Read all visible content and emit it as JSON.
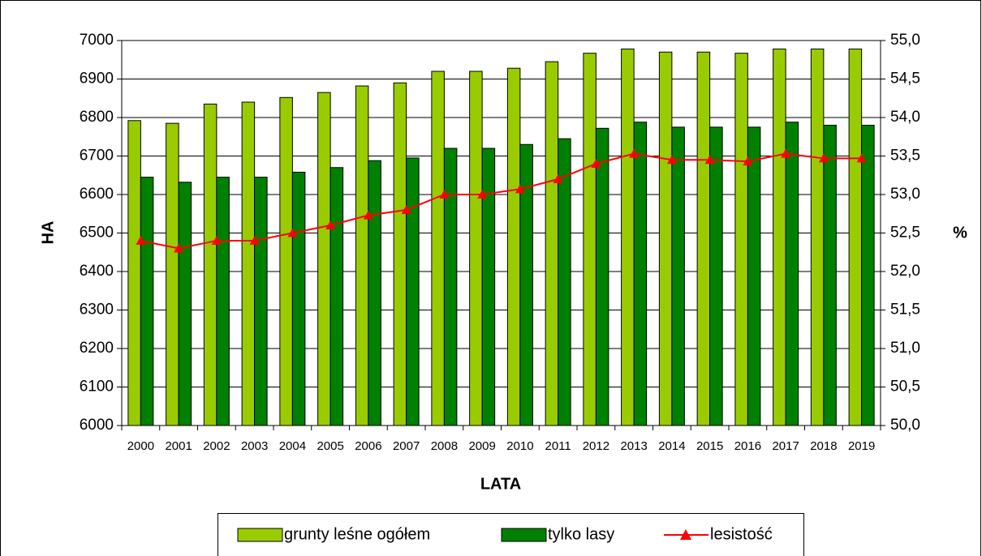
{
  "chart_data": {
    "type": "bar",
    "categories": [
      "2000",
      "2001",
      "2002",
      "2003",
      "2004",
      "2005",
      "2006",
      "2007",
      "2008",
      "2009",
      "2010",
      "2011",
      "2012",
      "2013",
      "2014",
      "2015",
      "2016",
      "2017",
      "2018",
      "2019"
    ],
    "series": [
      {
        "name": "grunty leśne ogółem",
        "color": "#99cc00",
        "values": [
          6792,
          6785,
          6835,
          6840,
          6852,
          6865,
          6882,
          6890,
          6920,
          6920,
          6928,
          6945,
          6967,
          6978,
          6970,
          6970,
          6967,
          6978,
          6978,
          6978
        ]
      },
      {
        "name": "tylko lasy",
        "color": "#008000",
        "values": [
          6645,
          6632,
          6645,
          6645,
          6658,
          6670,
          6688,
          6695,
          6720,
          6720,
          6730,
          6745,
          6772,
          6788,
          6775,
          6775,
          6775,
          6788,
          6780,
          6780
        ]
      },
      {
        "name": "lesistość",
        "color": "#ff0000",
        "type": "line",
        "axis": "y2",
        "values": [
          52.4,
          52.3,
          52.4,
          52.4,
          52.5,
          52.6,
          52.73,
          52.8,
          53.0,
          53.0,
          53.07,
          53.2,
          53.4,
          53.53,
          53.45,
          53.45,
          53.43,
          53.53,
          53.47,
          53.47
        ]
      }
    ],
    "ylabel": "HA",
    "y2label": "%",
    "xlabel": "LATA",
    "ylim": [
      6000,
      7000
    ],
    "yticks": [
      6000,
      6100,
      6200,
      6300,
      6400,
      6500,
      6600,
      6700,
      6800,
      6900,
      7000
    ],
    "y2lim": [
      50,
      55
    ],
    "y2ticks": [
      {
        "value": 50,
        "label": "50,0"
      },
      {
        "value": 50.5,
        "label": "50,5"
      },
      {
        "value": 51,
        "label": "51,0"
      },
      {
        "value": 51.5,
        "label": "51,5"
      },
      {
        "value": 52,
        "label": "52,0"
      },
      {
        "value": 52.5,
        "label": "52,5"
      },
      {
        "value": 53,
        "label": "53,0"
      },
      {
        "value": 53.5,
        "label": "53,5"
      },
      {
        "value": 54,
        "label": "54,0"
      },
      {
        "value": 54.5,
        "label": "54,5"
      },
      {
        "value": 55,
        "label": "55,0"
      }
    ],
    "grid": true,
    "legend": "bottom"
  }
}
